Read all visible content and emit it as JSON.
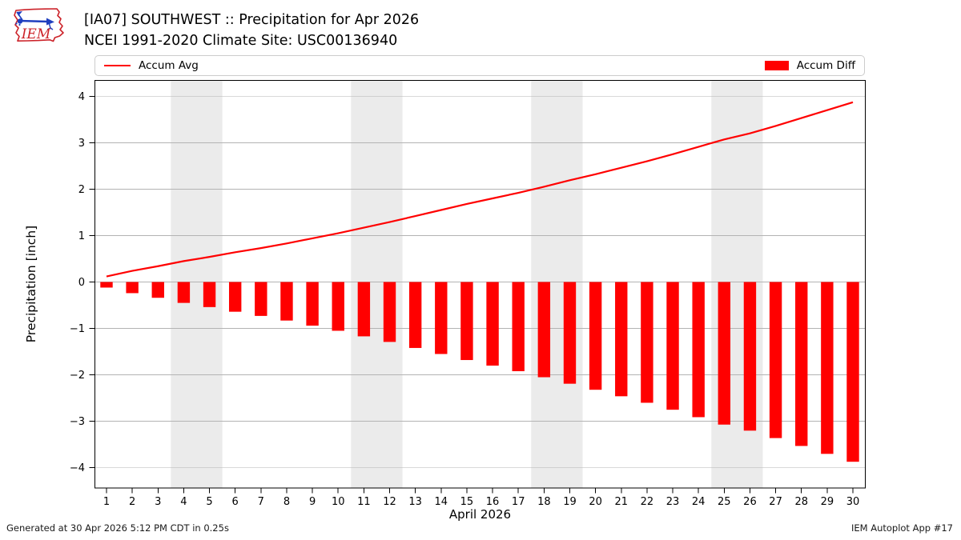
{
  "header": {
    "title_line1": "[IA07] SOUTHWEST :: Precipitation for Apr 2026",
    "title_line2": "NCEI 1991-2020 Climate Site: USC00136940",
    "logo_text": "IEM"
  },
  "legend": {
    "items": [
      {
        "label": "Accum Avg",
        "type": "line",
        "color": "#ff0000"
      },
      {
        "label": "Accum Diff",
        "type": "bar",
        "color": "#ff0000"
      }
    ]
  },
  "footer": {
    "left": "Generated at 30 Apr 2026 5:12 PM CDT in 0.25s",
    "right": "IEM Autoplot App #17"
  },
  "colors": {
    "accent": "#ff0000",
    "logo_red": "#cc2229",
    "logo_blue": "#1f3fbf",
    "weekend_band": "#ebebeb",
    "gridline": "#b3b3b3",
    "spine": "#000000"
  },
  "chart_data": {
    "type": "bar",
    "title": "[IA07] SOUTHWEST :: Precipitation for Apr 2026",
    "subtitle": "NCEI 1991-2020 Climate Site: USC00136940",
    "xlabel": "April 2026",
    "ylabel": "Precipitation [inch]",
    "x": [
      1,
      2,
      3,
      4,
      5,
      6,
      7,
      8,
      9,
      10,
      11,
      12,
      13,
      14,
      15,
      16,
      17,
      18,
      19,
      20,
      21,
      22,
      23,
      24,
      25,
      26,
      27,
      28,
      29,
      30
    ],
    "series": [
      {
        "name": "Accum Avg",
        "type": "line",
        "color": "#ff0000",
        "values": [
          0.12,
          0.24,
          0.34,
          0.45,
          0.54,
          0.64,
          0.73,
          0.83,
          0.94,
          1.05,
          1.17,
          1.29,
          1.42,
          1.55,
          1.68,
          1.8,
          1.92,
          2.05,
          2.19,
          2.32,
          2.46,
          2.6,
          2.75,
          2.91,
          3.07,
          3.2,
          3.36,
          3.53,
          3.7,
          3.87
        ]
      },
      {
        "name": "Accum Diff",
        "type": "bar",
        "color": "#ff0000",
        "values": [
          -0.12,
          -0.24,
          -0.34,
          -0.45,
          -0.54,
          -0.64,
          -0.73,
          -0.83,
          -0.94,
          -1.05,
          -1.17,
          -1.29,
          -1.42,
          -1.55,
          -1.68,
          -1.8,
          -1.92,
          -2.05,
          -2.19,
          -2.32,
          -2.46,
          -2.6,
          -2.75,
          -2.91,
          -3.07,
          -3.2,
          -3.36,
          -3.53,
          -3.7,
          -3.87
        ]
      }
    ],
    "ylim": [
      -4.4,
      4.35
    ],
    "yticks": [
      4,
      3,
      2,
      1,
      0,
      -1,
      -2,
      -3,
      -4
    ],
    "grid": true,
    "legend_position": "top",
    "weekend_bands": [
      [
        3.5,
        5.5
      ],
      [
        10.5,
        12.5
      ],
      [
        17.5,
        19.5
      ],
      [
        24.5,
        26.5
      ]
    ]
  }
}
